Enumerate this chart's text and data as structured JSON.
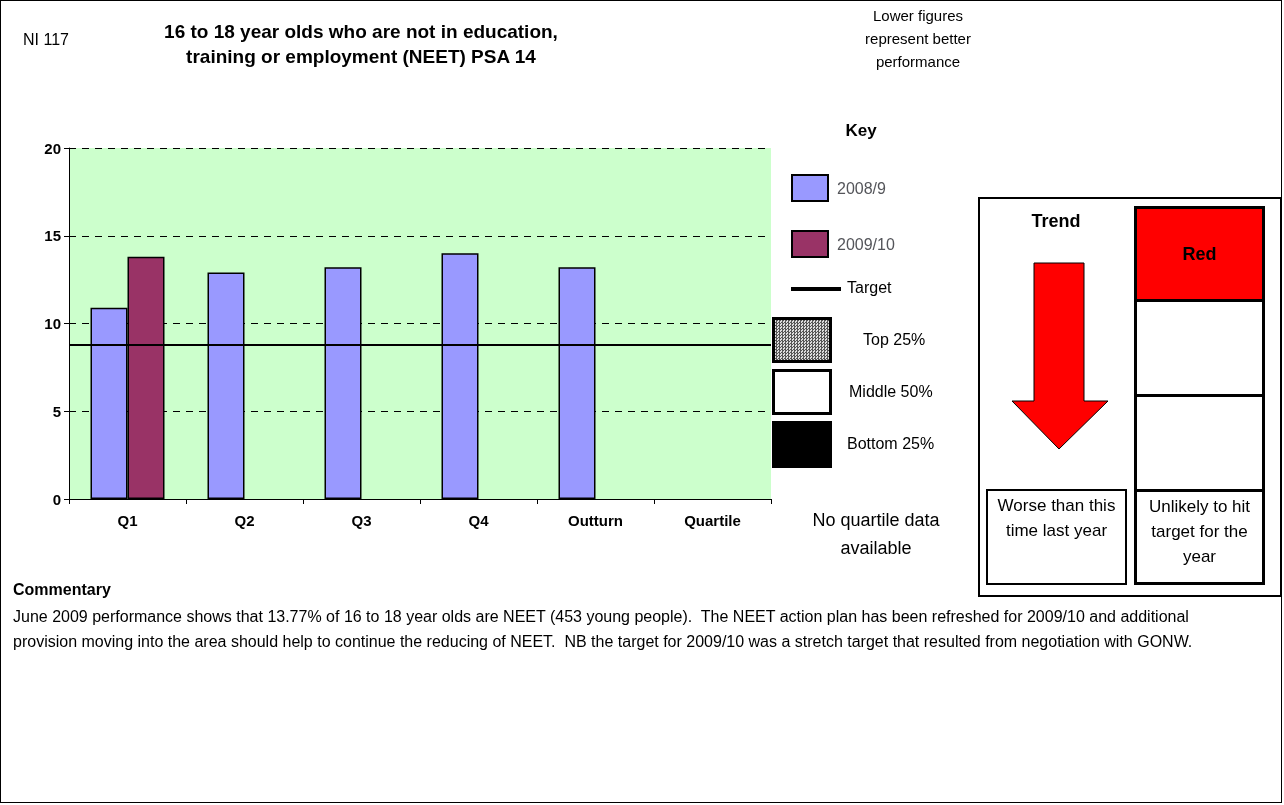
{
  "chart_data": {
    "type": "bar",
    "title": "16 to 18 year olds who are not in education, training or employment (NEET) PSA 14",
    "categories": [
      "Q1",
      "Q2",
      "Q3",
      "Q4",
      "Outturn",
      "Quartile"
    ],
    "series": [
      {
        "name": "2008/9",
        "color": "#9999ff",
        "values": [
          10.9,
          12.9,
          13.2,
          14.0,
          13.2,
          null
        ]
      },
      {
        "name": "2009/10",
        "color": "#993366",
        "values": [
          13.8,
          null,
          null,
          null,
          null,
          null
        ]
      }
    ],
    "ylim": [
      0,
      20
    ],
    "yticks": [
      0,
      5,
      10,
      15,
      20
    ],
    "grid": "y",
    "legend": "right",
    "ref_lines": [
      {
        "axis": "y",
        "value": 8.8,
        "label": "Target",
        "color": "#000000"
      }
    ],
    "annotations": [
      "NI 117",
      "Lower figures represent better performance",
      "Key",
      "Top 25%",
      "Middle 50%",
      "Bottom 25%",
      "No quartile data available",
      "Trend",
      "Red",
      "Worse than this time last year",
      "Unlikely to hit target for the year",
      "Commentary",
      "June 2009 performance shows that 13.77% of 16 to 18 year olds are NEET (453 young people).  The NEET action plan has been refreshed for 2009/10 and additional provision moving into the area should help to continue the reducing of NEET.  NB the target for 2009/10 was a stretch target that resulted from negotiation with GONW."
    ]
  }
}
